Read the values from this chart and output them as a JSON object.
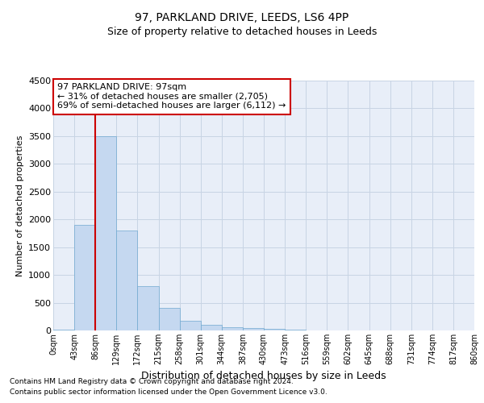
{
  "title_line1": "97, PARKLAND DRIVE, LEEDS, LS6 4PP",
  "title_line2": "Size of property relative to detached houses in Leeds",
  "xlabel": "Distribution of detached houses by size in Leeds",
  "ylabel": "Number of detached properties",
  "bin_labels": [
    "0sqm",
    "43sqm",
    "86sqm",
    "129sqm",
    "172sqm",
    "215sqm",
    "258sqm",
    "301sqm",
    "344sqm",
    "387sqm",
    "430sqm",
    "473sqm",
    "516sqm",
    "559sqm",
    "602sqm",
    "645sqm",
    "688sqm",
    "731sqm",
    "774sqm",
    "817sqm",
    "860sqm"
  ],
  "bar_values": [
    10,
    1900,
    3500,
    1800,
    800,
    400,
    175,
    100,
    60,
    40,
    30,
    15,
    5,
    2,
    1,
    0,
    0,
    0,
    0,
    0
  ],
  "bar_color": "#c5d8f0",
  "bar_edge_color": "#6fa8d0",
  "grid_color": "#c8d4e4",
  "background_color": "#e8eef8",
  "vline_x": 2,
  "vline_color": "#cc0000",
  "annotation_text": "97 PARKLAND DRIVE: 97sqm\n← 31% of detached houses are smaller (2,705)\n69% of semi-detached houses are larger (6,112) →",
  "annotation_box_color": "#cc0000",
  "ylim": [
    0,
    4500
  ],
  "yticks": [
    0,
    500,
    1000,
    1500,
    2000,
    2500,
    3000,
    3500,
    4000,
    4500
  ],
  "footer1": "Contains HM Land Registry data © Crown copyright and database right 2024.",
  "footer2": "Contains public sector information licensed under the Open Government Licence v3.0."
}
